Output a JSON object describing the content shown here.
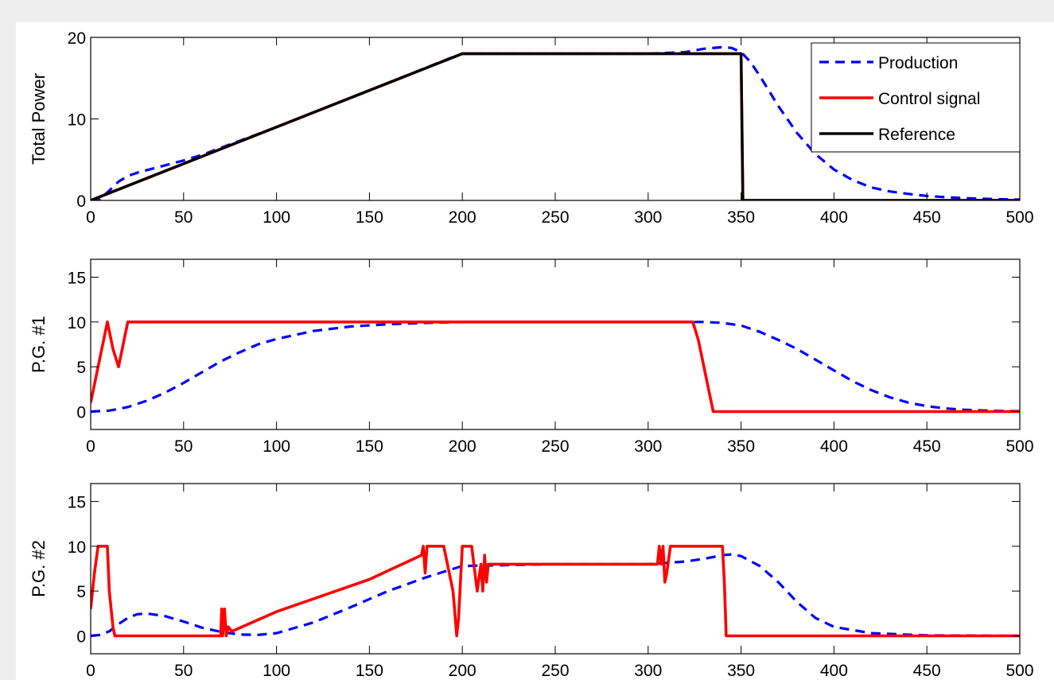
{
  "colors": {
    "production": "#0000ff",
    "control": "#ff0000",
    "reference": "#000000",
    "page_background": "#eeeeee"
  },
  "chart_data": [
    {
      "type": "line",
      "ylabel": "Total Power",
      "xlim": [
        0,
        500
      ],
      "ylim": [
        0,
        20
      ],
      "xticks": [
        0,
        50,
        100,
        150,
        200,
        250,
        300,
        350,
        400,
        450,
        500
      ],
      "yticks": [
        0,
        10,
        20
      ],
      "grid": false,
      "legend": {
        "position": "top-right",
        "entries": [
          "Production",
          "Control signal",
          "Reference"
        ]
      },
      "series": [
        {
          "name": "Production",
          "style": "dashed",
          "color": "#0000ff",
          "x": [
            0,
            5,
            10,
            15,
            20,
            25,
            30,
            40,
            50,
            60,
            80,
            100,
            150,
            195,
            200,
            250,
            300,
            320,
            330,
            340,
            345,
            350,
            355,
            360,
            370,
            380,
            390,
            400,
            410,
            420,
            430,
            440,
            450,
            460,
            470,
            480,
            490,
            500
          ],
          "y": [
            0,
            0.2,
            1.2,
            2.3,
            3,
            3.4,
            3.7,
            4.3,
            4.9,
            5.6,
            7.3,
            9,
            13.5,
            17.6,
            18,
            18,
            18,
            18.2,
            18.6,
            18.8,
            18.7,
            18.2,
            17,
            15.3,
            11.6,
            8.3,
            5.7,
            3.8,
            2.5,
            1.6,
            1.1,
            0.8,
            0.55,
            0.4,
            0.28,
            0.2,
            0.15,
            0.1
          ]
        },
        {
          "name": "Control signal",
          "style": "solid",
          "color": "#ff0000",
          "x": [
            0,
            200,
            350,
            351,
            500
          ],
          "y": [
            0,
            18,
            18,
            0,
            0
          ]
        },
        {
          "name": "Reference",
          "style": "solid",
          "color": "#000000",
          "x": [
            0,
            200,
            350,
            351,
            500
          ],
          "y": [
            0,
            18,
            18,
            0,
            0
          ]
        }
      ]
    },
    {
      "type": "line",
      "ylabel": "P.G. #1",
      "xlim": [
        0,
        500
      ],
      "ylim": [
        -2,
        17
      ],
      "xticks": [
        0,
        50,
        100,
        150,
        200,
        250,
        300,
        350,
        400,
        450,
        500
      ],
      "yticks": [
        0,
        5,
        10,
        15
      ],
      "grid": false,
      "series": [
        {
          "name": "Production",
          "style": "dashed",
          "color": "#0000ff",
          "x": [
            0,
            10,
            20,
            30,
            40,
            50,
            60,
            70,
            80,
            90,
            100,
            120,
            140,
            160,
            180,
            200,
            250,
            300,
            320,
            330,
            340,
            350,
            360,
            370,
            380,
            390,
            400,
            410,
            420,
            430,
            440,
            450,
            460,
            470,
            480,
            490,
            500
          ],
          "y": [
            0,
            0.1,
            0.5,
            1.2,
            2.1,
            3.2,
            4.4,
            5.6,
            6.6,
            7.5,
            8.1,
            9.0,
            9.5,
            9.75,
            9.9,
            10,
            10,
            10,
            10,
            10,
            9.9,
            9.6,
            8.9,
            8.0,
            7.0,
            5.8,
            4.6,
            3.4,
            2.4,
            1.6,
            1.0,
            0.6,
            0.35,
            0.2,
            0.12,
            0.07,
            0.04
          ]
        },
        {
          "name": "Control signal",
          "style": "solid",
          "color": "#ff0000",
          "x": [
            0,
            3,
            6,
            9,
            12,
            15,
            18,
            20,
            200,
            324,
            327,
            330,
            333,
            335,
            400,
            500
          ],
          "y": [
            1,
            4,
            7,
            10,
            7,
            5,
            8,
            10,
            10,
            10,
            8,
            5,
            2,
            0,
            0,
            0
          ]
        }
      ]
    },
    {
      "type": "line",
      "ylabel": "P.G. #2",
      "xlim": [
        0,
        500
      ],
      "ylim": [
        -2,
        17
      ],
      "xticks": [
        0,
        50,
        100,
        150,
        200,
        250,
        300,
        350,
        400,
        450,
        500
      ],
      "yticks": [
        0,
        5,
        10,
        15
      ],
      "grid": false,
      "series": [
        {
          "name": "Production",
          "style": "dashed",
          "color": "#0000ff",
          "x": [
            0,
            5,
            10,
            15,
            20,
            25,
            30,
            40,
            50,
            60,
            70,
            80,
            90,
            100,
            120,
            140,
            160,
            180,
            200,
            250,
            300,
            320,
            330,
            340,
            345,
            350,
            360,
            370,
            380,
            390,
            400,
            420,
            450,
            500
          ],
          "y": [
            0,
            0.1,
            0.5,
            1.3,
            2,
            2.4,
            2.5,
            2.2,
            1.6,
            0.9,
            0.45,
            0.15,
            0.1,
            0.3,
            1.5,
            3.2,
            5.0,
            6.5,
            7.8,
            8,
            8,
            8.3,
            8.6,
            9.0,
            9.1,
            8.9,
            7.8,
            6.0,
            3.8,
            2.0,
            1.0,
            0.3,
            0.05,
            0
          ],
          "x_note": ""
        },
        {
          "name": "Control signal",
          "style": "solid",
          "color": "#ff0000",
          "x": [
            0,
            2,
            4,
            6,
            9,
            10,
            12,
            13,
            70,
            70.5,
            71,
            72,
            73,
            74,
            76,
            100,
            150,
            178,
            179,
            180,
            181,
            182,
            190,
            195,
            197,
            198,
            200,
            202,
            205,
            208,
            210,
            211,
            212,
            213,
            214,
            215,
            250,
            300,
            305,
            306,
            307,
            308,
            309,
            310,
            312,
            340,
            341,
            342,
            400,
            500
          ],
          "y": [
            3,
            7,
            10,
            10,
            10,
            5,
            1,
            0,
            0,
            3,
            0,
            3,
            0,
            1,
            0.5,
            2.7,
            6.3,
            9,
            10,
            7,
            10,
            10,
            10,
            5,
            0,
            2,
            10,
            10,
            10,
            5,
            8,
            5,
            9,
            6,
            8,
            8,
            8,
            8,
            8,
            10,
            8,
            10,
            6,
            7,
            10,
            10,
            6,
            0,
            0,
            0
          ]
        }
      ]
    }
  ]
}
